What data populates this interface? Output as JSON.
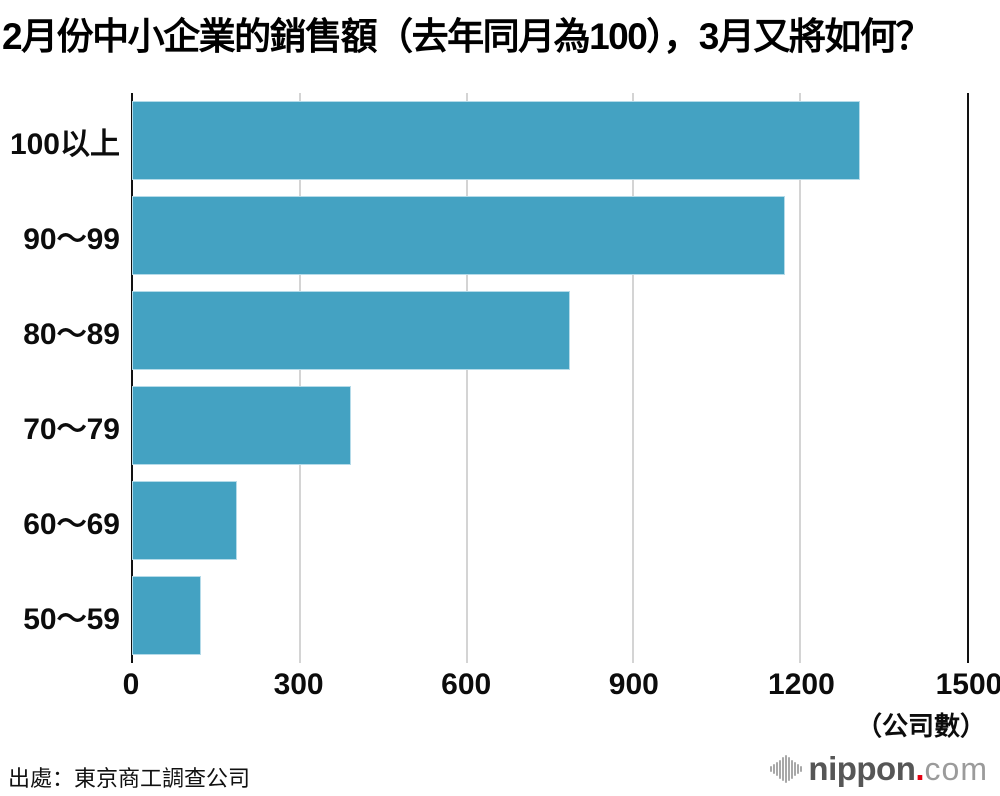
{
  "title": "2月份中小企業的銷售額（去年同月為100），3月又將如何？",
  "source": "出處：東京商工調查公司",
  "logo": {
    "name": "nippon",
    "dot": ".",
    "tld": "com"
  },
  "colors": {
    "bar": "#44a2c2",
    "bar_edge": "#b5dbe9",
    "grid": "#d4d4d4",
    "axis": "#121212",
    "logo_name": "#565656",
    "logo_dot": "#e60012",
    "logo_tld": "#9b9b9b"
  },
  "chart_data": {
    "type": "bar",
    "orientation": "horizontal",
    "title": "2月份中小企業的銷售額（去年同月為100），3月又將如何？",
    "categories": [
      "100以上",
      "90〜99",
      "80〜89",
      "70〜79",
      "60〜69",
      "50〜59"
    ],
    "values": [
      1305,
      1170,
      785,
      390,
      185,
      120
    ],
    "x_ticks": [
      "0",
      "300",
      "600",
      "900",
      "1200",
      "1500"
    ],
    "xlim": [
      0,
      1500
    ],
    "unit_label": "（公司數）",
    "grid": true,
    "legend": null
  }
}
